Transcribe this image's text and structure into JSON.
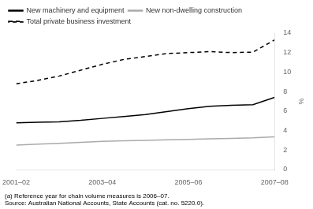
{
  "chart_data": {
    "type": "line",
    "x": [
      0,
      0.5,
      1,
      1.5,
      2,
      2.5,
      3,
      3.5,
      4,
      4.5,
      5,
      5.5,
      6
    ],
    "series": [
      {
        "name": "New machinery and equipment",
        "color": "#000000",
        "line_style": "solid",
        "values": [
          4.8,
          4.85,
          4.9,
          5.05,
          5.25,
          5.45,
          5.65,
          5.95,
          6.25,
          6.5,
          6.6,
          6.65,
          7.4
        ]
      },
      {
        "name": "New non-dwelling construction",
        "color": "#aaaaaa",
        "line_style": "solid",
        "values": [
          2.5,
          2.6,
          2.7,
          2.8,
          2.9,
          2.95,
          3.0,
          3.05,
          3.1,
          3.15,
          3.2,
          3.25,
          3.35
        ]
      },
      {
        "name": "Total private business investment",
        "color": "#000000",
        "line_style": "dashed",
        "values": [
          8.8,
          9.15,
          9.6,
          10.2,
          10.8,
          11.3,
          11.6,
          11.9,
          12.0,
          12.1,
          12.0,
          12.05,
          13.3
        ]
      }
    ],
    "xlim": [
      0,
      6
    ],
    "xticks": [
      {
        "value": 0,
        "label": "2001–02"
      },
      {
        "value": 2,
        "label": "2003–04"
      },
      {
        "value": 4,
        "label": "2005–06"
      },
      {
        "value": 6,
        "label": "2007–08"
      }
    ],
    "ylim": [
      0,
      14
    ],
    "yticks": [
      0,
      2,
      4,
      6,
      8,
      10,
      12,
      14
    ],
    "y_label": "%",
    "footnote": "(a) Reference year for chain volume measures is 2006–07.",
    "source": "Source: Australian National Accounts, State Accounts (cat. no. 5220.0).",
    "grid": false,
    "legend": "upper left"
  }
}
